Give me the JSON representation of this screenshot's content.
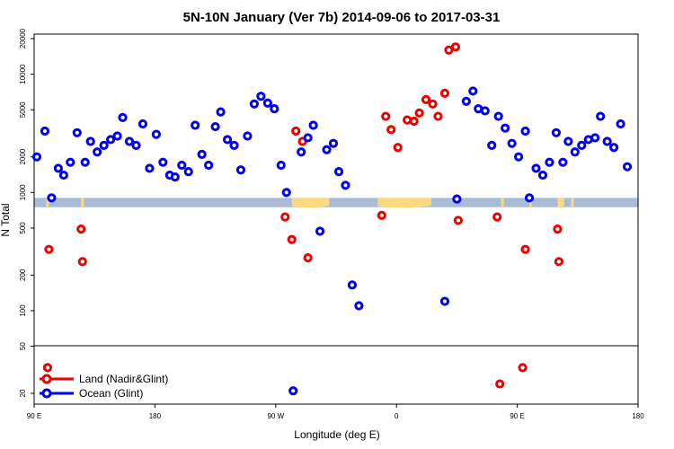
{
  "chart_data": {
    "type": "scatter",
    "title": "5N-10N January (Ver 7b)   2014-09-06 to 2017-03-31",
    "xlabel": "Longitude (deg E)",
    "ylabel": "N Total",
    "x_axis": {
      "range_deg_east_unwrapped": [
        90,
        450
      ],
      "ticks": [
        {
          "value": 90,
          "label": "90 E"
        },
        {
          "value": 180,
          "label": "180"
        },
        {
          "value": 270,
          "label": "90 W"
        },
        {
          "value": 360,
          "label": "0"
        },
        {
          "value": 450,
          "label": "90 E"
        },
        {
          "value": 540,
          "label": "180"
        }
      ],
      "range": [
        90,
        540
      ]
    },
    "y_axis": {
      "scale": "log",
      "upper_panel_range": [
        50,
        25000
      ],
      "lower_panel_range": [
        18,
        50
      ],
      "ticks": [
        {
          "value": 20,
          "label": "20"
        },
        {
          "value": 50,
          "label": "50"
        },
        {
          "value": 100,
          "label": "100"
        },
        {
          "value": 200,
          "label": "200"
        },
        {
          "value": 500,
          "label": "500"
        },
        {
          "value": 1000,
          "label": "1000"
        },
        {
          "value": 2000,
          "label": "2000"
        },
        {
          "value": 5000,
          "label": "5000"
        },
        {
          "value": 10000,
          "label": "10000"
        },
        {
          "value": 20000,
          "label": "20000"
        }
      ]
    },
    "land_band": {
      "ymin": 750,
      "ymax": 900,
      "color": "#a9bcd7",
      "land_color": "#fcd97c"
    },
    "land_segments": [
      {
        "x0": 99,
        "x1": 101
      },
      {
        "x0": 125,
        "x1": 127
      },
      {
        "x0": 282,
        "x1": 310
      },
      {
        "x0": 346,
        "x1": 386
      },
      {
        "x0": 438,
        "x1": 440
      },
      {
        "x0": 459,
        "x1": 461
      },
      {
        "x0": 480,
        "x1": 485
      },
      {
        "x0": 490,
        "x1": 492
      }
    ],
    "legend": {
      "position": "bottom-left",
      "entries": [
        "Land (Nadir&Glint)",
        "Ocean (Glint)"
      ]
    },
    "series": [
      {
        "name": "Land (Nadir&Glint)",
        "color": "#ee0000",
        "points": [
          {
            "x": 101,
            "y": 330
          },
          {
            "x": 100,
            "y": 33
          },
          {
            "x": 125,
            "y": 490
          },
          {
            "x": 126,
            "y": 260
          },
          {
            "x": 277,
            "y": 620
          },
          {
            "x": 282,
            "y": 400
          },
          {
            "x": 285,
            "y": 3300
          },
          {
            "x": 290,
            "y": 2700
          },
          {
            "x": 294,
            "y": 280
          },
          {
            "x": 349,
            "y": 640
          },
          {
            "x": 352,
            "y": 4400
          },
          {
            "x": 356,
            "y": 3400
          },
          {
            "x": 361,
            "y": 2400
          },
          {
            "x": 368,
            "y": 4100
          },
          {
            "x": 373,
            "y": 4000
          },
          {
            "x": 377,
            "y": 4700
          },
          {
            "x": 382,
            "y": 6100
          },
          {
            "x": 387,
            "y": 5600
          },
          {
            "x": 391,
            "y": 4400
          },
          {
            "x": 396,
            "y": 6900
          },
          {
            "x": 399,
            "y": 16000
          },
          {
            "x": 404,
            "y": 17000
          },
          {
            "x": 406,
            "y": 580
          },
          {
            "x": 435,
            "y": 620
          },
          {
            "x": 437,
            "y": 24
          },
          {
            "x": 454,
            "y": 33
          },
          {
            "x": 456,
            "y": 330
          },
          {
            "x": 480,
            "y": 490
          },
          {
            "x": 481,
            "y": 260
          }
        ]
      },
      {
        "name": "Ocean (Glint)",
        "color": "#0000ee",
        "points": [
          {
            "x": 92,
            "y": 2000
          },
          {
            "x": 98,
            "y": 3300
          },
          {
            "x": 103,
            "y": 900
          },
          {
            "x": 108,
            "y": 1600
          },
          {
            "x": 112,
            "y": 1400
          },
          {
            "x": 117,
            "y": 1800
          },
          {
            "x": 122,
            "y": 3200
          },
          {
            "x": 128,
            "y": 1800
          },
          {
            "x": 132,
            "y": 2700
          },
          {
            "x": 137,
            "y": 2200
          },
          {
            "x": 142,
            "y": 2500
          },
          {
            "x": 147,
            "y": 2800
          },
          {
            "x": 152,
            "y": 3000
          },
          {
            "x": 156,
            "y": 4300
          },
          {
            "x": 161,
            "y": 2700
          },
          {
            "x": 166,
            "y": 2500
          },
          {
            "x": 171,
            "y": 3800
          },
          {
            "x": 176,
            "y": 1600
          },
          {
            "x": 181,
            "y": 3100
          },
          {
            "x": 186,
            "y": 1800
          },
          {
            "x": 191,
            "y": 1400
          },
          {
            "x": 195,
            "y": 1350
          },
          {
            "x": 200,
            "y": 1700
          },
          {
            "x": 205,
            "y": 1500
          },
          {
            "x": 210,
            "y": 3700
          },
          {
            "x": 215,
            "y": 2100
          },
          {
            "x": 220,
            "y": 1700
          },
          {
            "x": 225,
            "y": 3600
          },
          {
            "x": 229,
            "y": 4800
          },
          {
            "x": 234,
            "y": 2800
          },
          {
            "x": 239,
            "y": 2500
          },
          {
            "x": 244,
            "y": 1550
          },
          {
            "x": 249,
            "y": 3000
          },
          {
            "x": 254,
            "y": 5600
          },
          {
            "x": 259,
            "y": 6500
          },
          {
            "x": 264,
            "y": 5700
          },
          {
            "x": 269,
            "y": 5100
          },
          {
            "x": 274,
            "y": 1700
          },
          {
            "x": 278,
            "y": 1000
          },
          {
            "x": 283,
            "y": 21
          },
          {
            "x": 289,
            "y": 2200
          },
          {
            "x": 294,
            "y": 2900
          },
          {
            "x": 298,
            "y": 3700
          },
          {
            "x": 303,
            "y": 470
          },
          {
            "x": 308,
            "y": 2300
          },
          {
            "x": 313,
            "y": 2600
          },
          {
            "x": 317,
            "y": 1500
          },
          {
            "x": 322,
            "y": 1150
          },
          {
            "x": 327,
            "y": 165
          },
          {
            "x": 332,
            "y": 110
          },
          {
            "x": 396,
            "y": 120
          },
          {
            "x": 405,
            "y": 880
          },
          {
            "x": 412,
            "y": 5900
          },
          {
            "x": 417,
            "y": 7200
          },
          {
            "x": 421,
            "y": 5100
          },
          {
            "x": 426,
            "y": 4900
          },
          {
            "x": 431,
            "y": 2500
          },
          {
            "x": 436,
            "y": 4400
          },
          {
            "x": 441,
            "y": 3500
          },
          {
            "x": 446,
            "y": 2600
          },
          {
            "x": 451,
            "y": 2000
          },
          {
            "x": 456,
            "y": 3300
          },
          {
            "x": 459,
            "y": 900
          },
          {
            "x": 464,
            "y": 1600
          },
          {
            "x": 469,
            "y": 1400
          },
          {
            "x": 474,
            "y": 1800
          },
          {
            "x": 479,
            "y": 3200
          },
          {
            "x": 484,
            "y": 1800
          },
          {
            "x": 488,
            "y": 2700
          },
          {
            "x": 493,
            "y": 2200
          },
          {
            "x": 498,
            "y": 2500
          },
          {
            "x": 503,
            "y": 2800
          },
          {
            "x": 508,
            "y": 2900
          },
          {
            "x": 512,
            "y": 4400
          },
          {
            "x": 517,
            "y": 2700
          },
          {
            "x": 522,
            "y": 2400
          },
          {
            "x": 527,
            "y": 3800
          },
          {
            "x": 532,
            "y": 1650
          }
        ]
      }
    ]
  }
}
